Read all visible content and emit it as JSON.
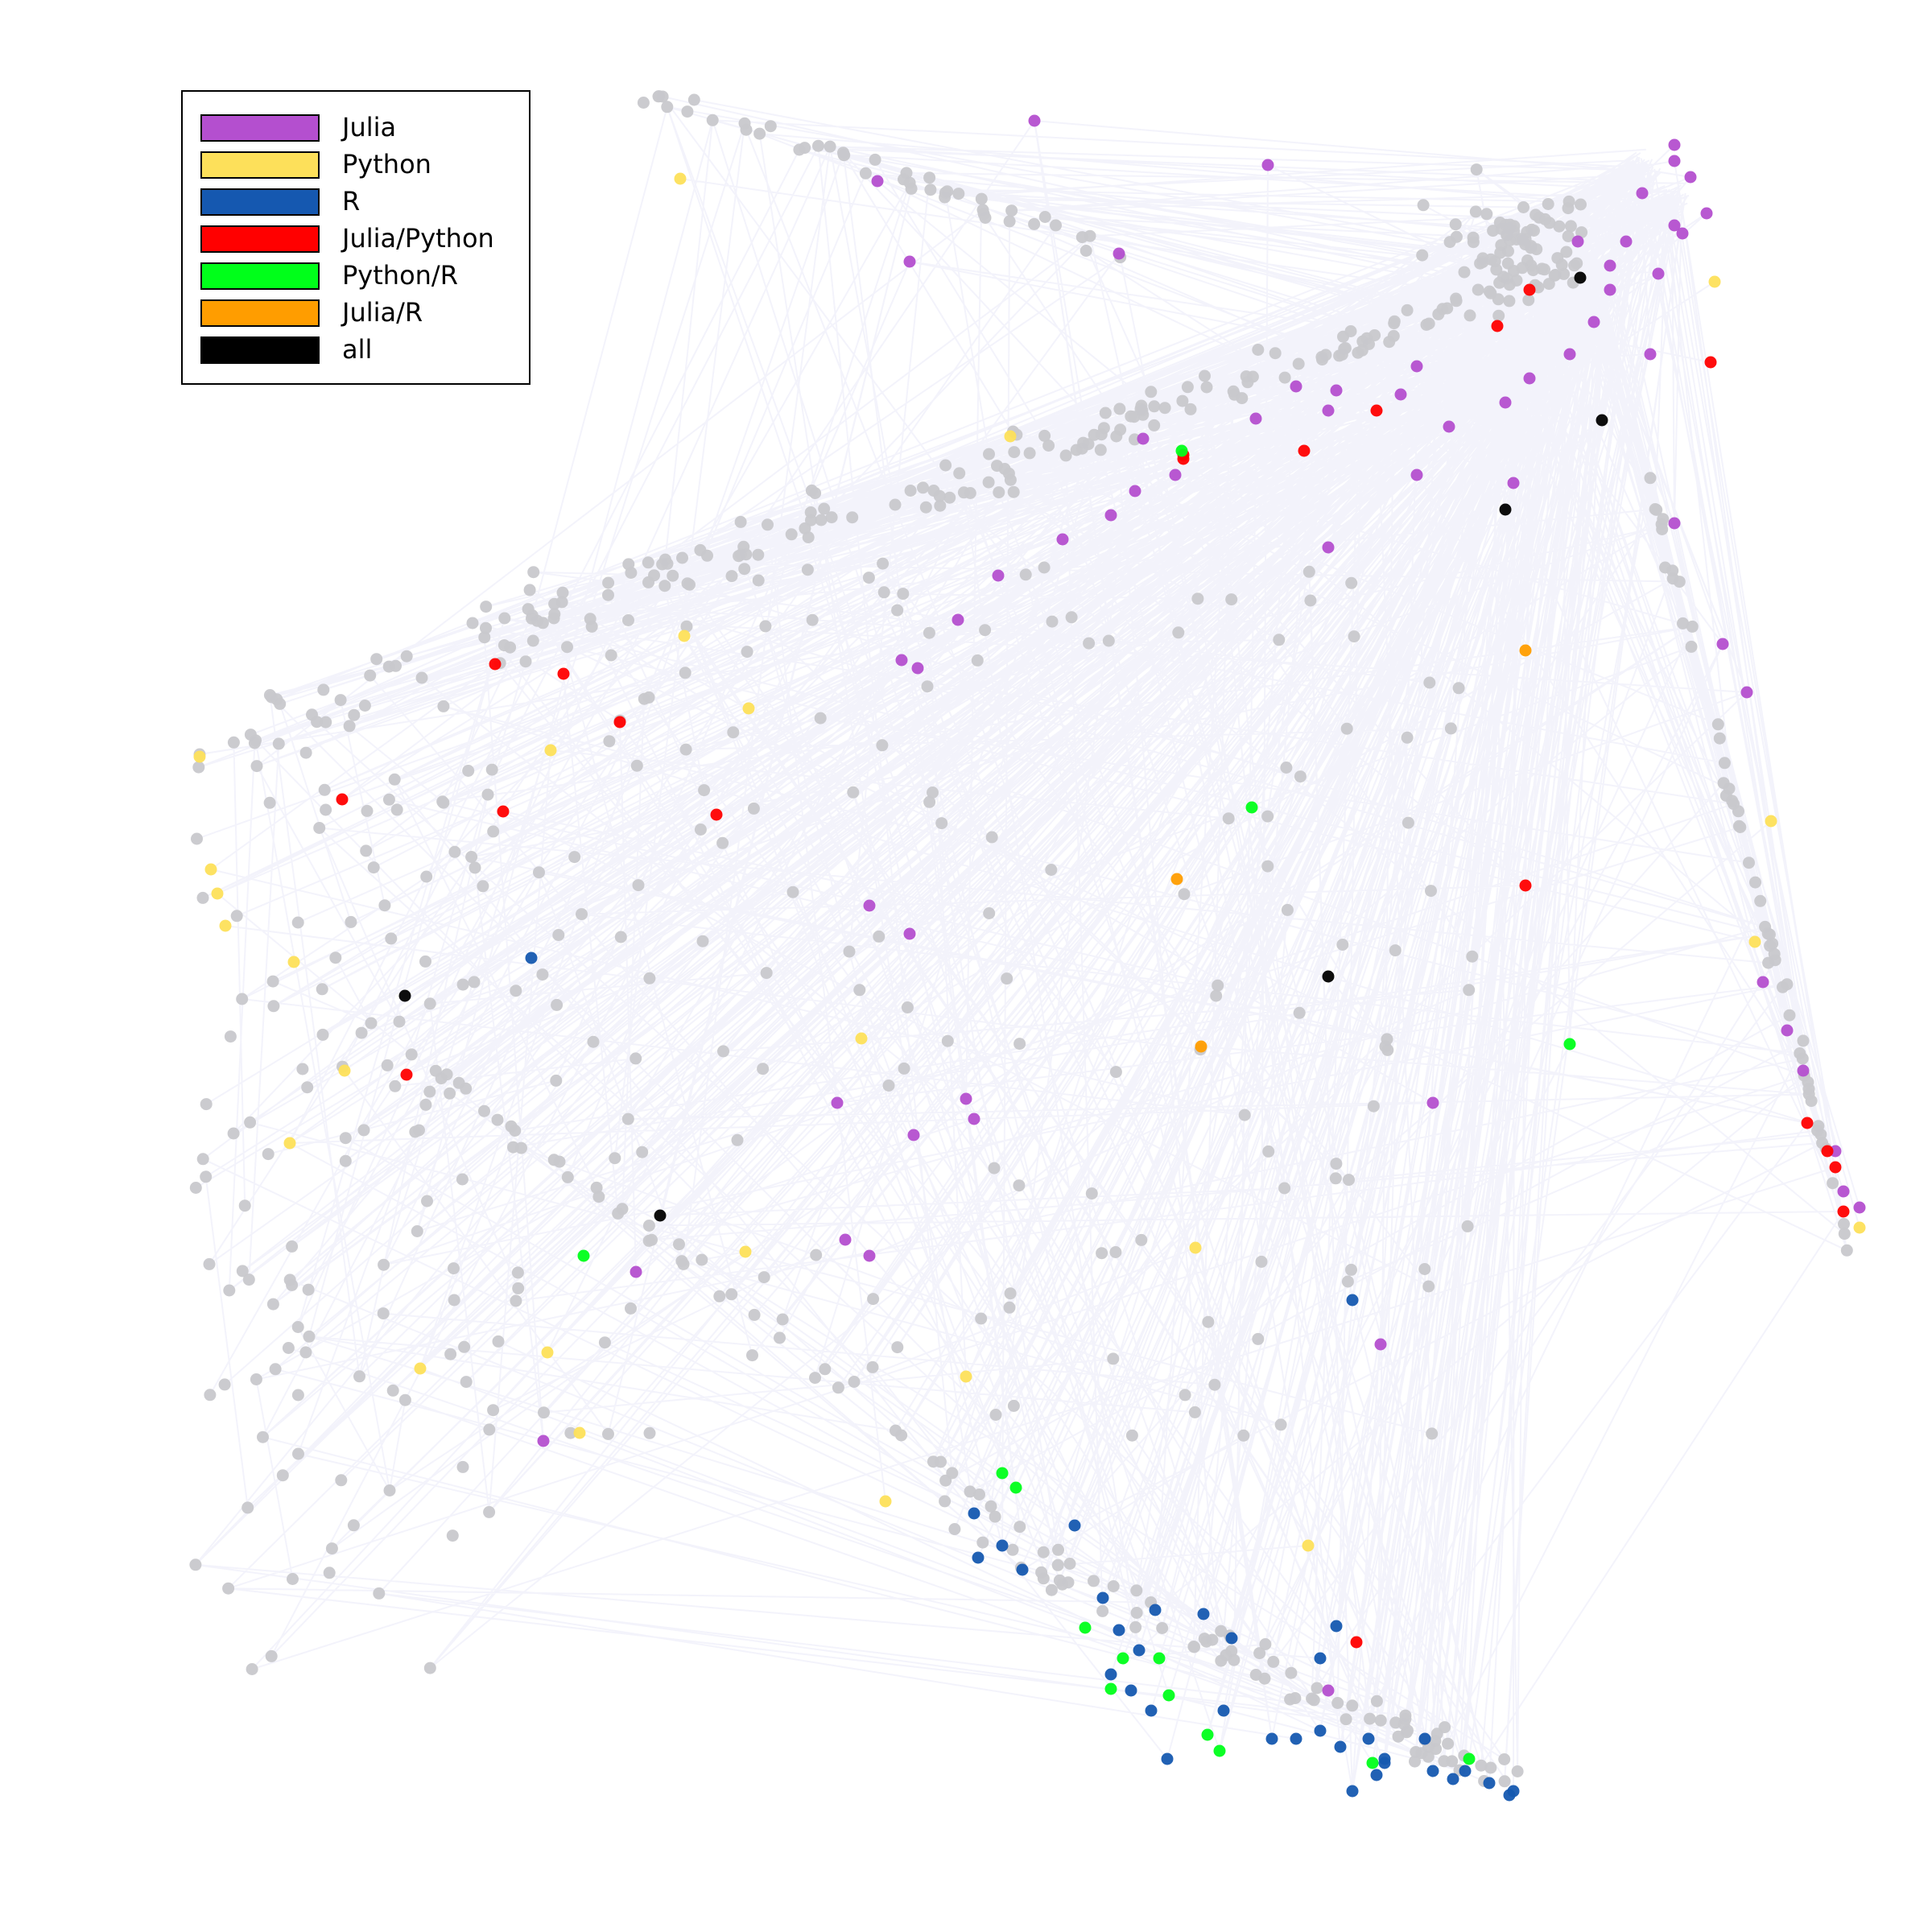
{
  "colors": {
    "edge": "#6a67c8",
    "node_default": "#c8c8cc",
    "background": "#ffffff"
  },
  "legend": {
    "items": [
      {
        "label": "Julia",
        "color": "#b44fcf"
      },
      {
        "label": "Python",
        "color": "#fde05a"
      },
      {
        "label": "R",
        "color": "#1558b0"
      },
      {
        "label": "Julia/Python",
        "color": "#ff0000"
      },
      {
        "label": "Python/R",
        "color": "#00ff1a"
      },
      {
        "label": "Julia/R",
        "color": "#ff9d00"
      },
      {
        "label": "all",
        "color": "#000000"
      }
    ]
  }
}
